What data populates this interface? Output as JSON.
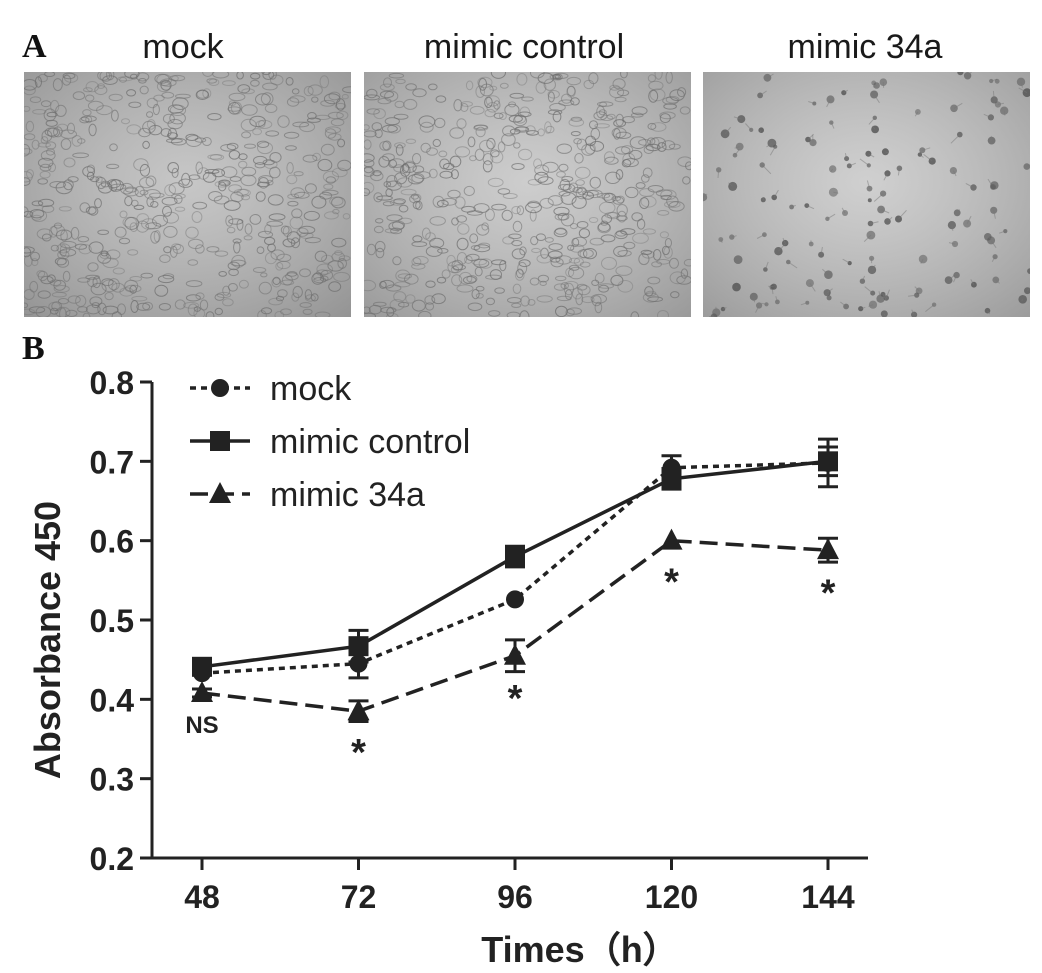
{
  "panels": {
    "a_letter": "A",
    "b_letter": "B",
    "micrographs": [
      {
        "label": "mock",
        "tone": "#b4b4b4",
        "density": "dense"
      },
      {
        "label": "mimic control",
        "tone": "#bdbdbd",
        "density": "dense"
      },
      {
        "label": "mimic 34a",
        "tone": "#c0c0c0",
        "density": "sparse"
      }
    ]
  },
  "chart_data": {
    "type": "line",
    "title": "",
    "xlabel": "Times（h）",
    "ylabel": "Absorbance 450",
    "categories": [
      "48",
      "72",
      "96",
      "120",
      "144"
    ],
    "y_ticks": [
      "0.2",
      "0.3",
      "0.4",
      "0.5",
      "0.6",
      "0.7",
      "0.8"
    ],
    "ylim": [
      0.2,
      0.8
    ],
    "legend_position": "top-left",
    "series": [
      {
        "name": "mock",
        "marker": "circle",
        "line": "dotted",
        "values": [
          0.433,
          0.445,
          0.526,
          0.692,
          0.698
        ],
        "errors": [
          0.0,
          0.018,
          0.0,
          0.015,
          0.03
        ]
      },
      {
        "name": "mimic control",
        "marker": "square",
        "line": "solid",
        "values": [
          0.441,
          0.467,
          0.58,
          0.678,
          0.7
        ],
        "errors": [
          0.008,
          0.02,
          0.013,
          0.013,
          0.018
        ]
      },
      {
        "name": "mimic 34a",
        "marker": "triangle",
        "line": "dashed",
        "values": [
          0.408,
          0.385,
          0.455,
          0.6,
          0.588
        ],
        "errors": [
          0.005,
          0.013,
          0.02,
          0.0,
          0.015
        ]
      }
    ],
    "annotations": [
      {
        "category": "48",
        "text": "NS",
        "y": 0.373
      },
      {
        "category": "72",
        "text": "*",
        "y": 0.345
      },
      {
        "category": "96",
        "text": "*",
        "y": 0.413
      },
      {
        "category": "120",
        "text": "*",
        "y": 0.56
      },
      {
        "category": "144",
        "text": "*",
        "y": 0.546
      }
    ],
    "color": "#222222"
  }
}
